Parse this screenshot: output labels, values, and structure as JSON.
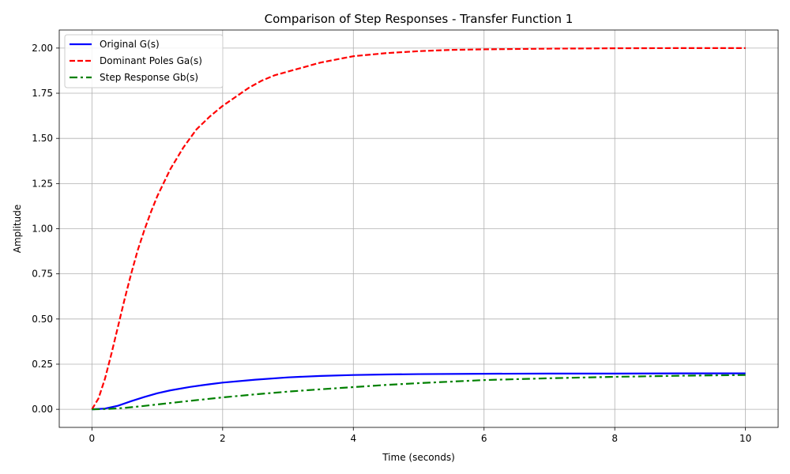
{
  "chart_data": {
    "type": "line",
    "title": "Comparison of Step Responses - Transfer Function 1",
    "xlabel": "Time (seconds)",
    "ylabel": "Amplitude",
    "xlim": [
      -0.5,
      10.5
    ],
    "ylim": [
      -0.1,
      2.1
    ],
    "x_ticks": [
      0,
      2,
      4,
      6,
      8,
      10
    ],
    "x_tick_labels": [
      "0",
      "2",
      "4",
      "6",
      "8",
      "10"
    ],
    "y_ticks": [
      0,
      0.25,
      0.5,
      0.75,
      1.0,
      1.25,
      1.5,
      1.75,
      2.0
    ],
    "y_tick_labels": [
      "0.00",
      "0.25",
      "0.50",
      "0.75",
      "1.00",
      "1.25",
      "1.50",
      "1.75",
      "2.00"
    ],
    "grid": true,
    "legend_position": "top-left",
    "series": [
      {
        "name": "Original G(s)",
        "color": "#0000ff",
        "dash": "solid",
        "x": [
          0,
          0.2,
          0.4,
          0.6,
          0.8,
          1.0,
          1.2,
          1.5,
          1.8,
          2.0,
          2.5,
          3.0,
          3.5,
          4.0,
          4.5,
          5.0,
          6.0,
          7.0,
          8.0,
          9.0,
          10.0
        ],
        "y": [
          0,
          0.004,
          0.02,
          0.045,
          0.068,
          0.089,
          0.105,
          0.124,
          0.139,
          0.148,
          0.164,
          0.177,
          0.185,
          0.19,
          0.193,
          0.195,
          0.197,
          0.198,
          0.198,
          0.199,
          0.199
        ]
      },
      {
        "name": "Dominant Poles Ga(s)",
        "color": "#ff0000",
        "dash": "dashed",
        "x": [
          0,
          0.1,
          0.2,
          0.3,
          0.4,
          0.5,
          0.6,
          0.7,
          0.8,
          0.9,
          1.0,
          1.2,
          1.4,
          1.6,
          1.8,
          2.0,
          2.2,
          2.4,
          2.6,
          2.8,
          3.0,
          3.5,
          4.0,
          4.5,
          5.0,
          5.5,
          6.0,
          7.0,
          8.0,
          9.0,
          10.0
        ],
        "y": [
          0,
          0.06,
          0.17,
          0.31,
          0.46,
          0.61,
          0.75,
          0.88,
          0.99,
          1.09,
          1.18,
          1.33,
          1.45,
          1.55,
          1.62,
          1.68,
          1.73,
          1.78,
          1.82,
          1.85,
          1.87,
          1.92,
          1.955,
          1.972,
          1.983,
          1.99,
          1.993,
          1.997,
          1.999,
          2.0,
          2.0
        ]
      },
      {
        "name": "Step Response Gb(s)",
        "color": "#008000",
        "dash": "dashdot",
        "x": [
          0,
          0.25,
          0.5,
          0.75,
          1.0,
          1.5,
          2.0,
          2.5,
          3.0,
          3.5,
          4.0,
          4.5,
          5.0,
          6.0,
          7.0,
          8.0,
          9.0,
          10.0
        ],
        "y": [
          0,
          0.002,
          0.008,
          0.017,
          0.027,
          0.047,
          0.066,
          0.083,
          0.098,
          0.111,
          0.123,
          0.135,
          0.145,
          0.162,
          0.172,
          0.18,
          0.186,
          0.19
        ]
      }
    ]
  }
}
